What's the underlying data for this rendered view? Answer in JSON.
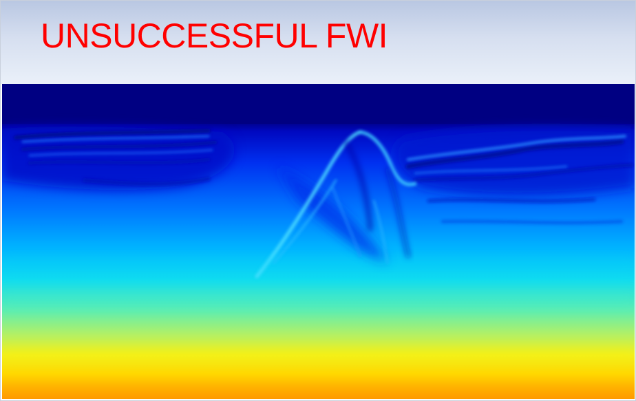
{
  "slide": {
    "title": "UNSUCCESSFUL FWI",
    "title_color": "#ff0000",
    "header_gradient": [
      "#b9c7e2",
      "#eaf0f9"
    ]
  },
  "figure": {
    "kind": "seismic velocity model (FWI result)",
    "colormap": "jet",
    "colormap_stops": [
      "#00007a",
      "#0000c8",
      "#0050ff",
      "#00b4ff",
      "#20e6e6",
      "#90f070",
      "#ffe000",
      "#ffb000",
      "#ff8c00"
    ],
    "colorbar_shown": false,
    "axes_shown": false
  }
}
